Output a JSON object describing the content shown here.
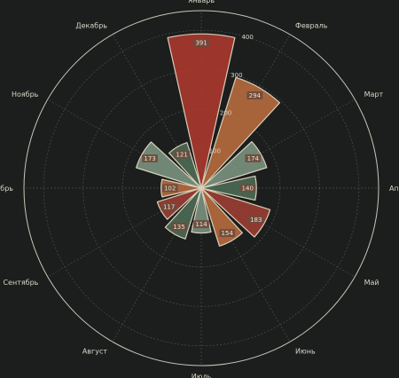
{
  "chart_data": {
    "type": "bar",
    "subtype": "polar-rose",
    "categories": [
      "Январь",
      "Февраль",
      "Март",
      "Апрель",
      "Май",
      "Июнь",
      "Июль",
      "Август",
      "Сентябрь",
      "Октябрь",
      "Ноябрь",
      "Декабрь"
    ],
    "series": [
      {
        "values": [
          391,
          294,
          174,
          140,
          183,
          154,
          114,
          135,
          117,
          102,
          173,
          121
        ]
      }
    ],
    "radial_ticks": [
      100,
      200,
      300,
      400
    ],
    "rmax": 450,
    "grid": true,
    "colors": {
      "background": "#1b1e1c",
      "outer_ring": "#c9c6bb",
      "grid": "#4a4f4b",
      "bar_edge": "#d9cfb9",
      "label_box": "#6e4a3e",
      "bars": [
        "#b33a2f",
        "#c0703f",
        "#7f9a86",
        "#4f7058",
        "#a33f34",
        "#c0703f",
        "#7f9a86",
        "#4f7058",
        "#a33f34",
        "#c0703f",
        "#7f9a86",
        "#4f7058"
      ]
    }
  }
}
